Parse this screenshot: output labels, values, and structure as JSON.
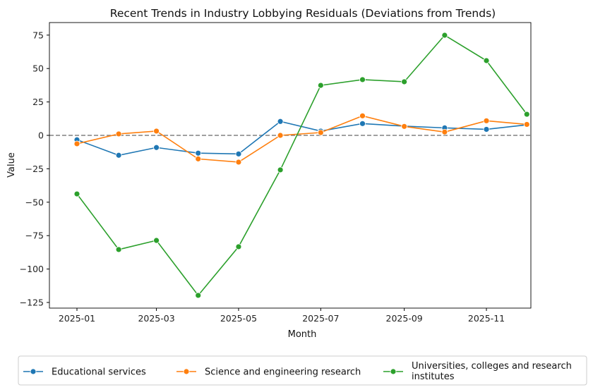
{
  "chart_data": {
    "type": "line",
    "title": "Recent Trends in Industry Lobbying Residuals (Deviations from Trends)",
    "xlabel": "Month",
    "ylabel": "Value",
    "x": [
      "2025-01-01",
      "2025-02-01",
      "2025-03-01",
      "2025-04-01",
      "2025-05-01",
      "2025-06-01",
      "2025-07-01",
      "2025-08-01",
      "2025-09-01",
      "2025-10-01",
      "2025-11-01",
      "2025-12-01"
    ],
    "x_ticks": [
      "2025-01",
      "2025-03",
      "2025-05",
      "2025-07",
      "2025-09",
      "2025-11"
    ],
    "y_ticks": [
      75,
      50,
      25,
      0,
      -25,
      -50,
      -75,
      -100,
      -125
    ],
    "ylim": [
      -129,
      84
    ],
    "reference_line": {
      "y": 0,
      "style": "dashed",
      "color": "#808080"
    },
    "grid": false,
    "legend_position": "bottom-outside",
    "series": [
      {
        "name": "Educational services",
        "color": "#1f77b4",
        "values": [
          -3.3,
          -14.9,
          -9.1,
          -13.3,
          -13.9,
          10.4,
          3.2,
          8.8,
          6.9,
          5.6,
          4.5,
          7.9
        ]
      },
      {
        "name": "Science and engineering research",
        "color": "#ff7f0e",
        "values": [
          -6.3,
          1.1,
          3.2,
          -17.6,
          -20.0,
          0.0,
          2.1,
          14.6,
          6.7,
          2.5,
          10.9,
          8.2
        ]
      },
      {
        "name": "Universities, colleges and research institutes",
        "name_lines": [
          "Universities, colleges and research",
          "institutes"
        ],
        "color": "#2ca02c",
        "values": [
          -43.8,
          -85.4,
          -78.6,
          -119.7,
          -83.3,
          -25.8,
          37.4,
          41.7,
          40.1,
          74.9,
          55.9,
          15.8
        ]
      }
    ]
  }
}
